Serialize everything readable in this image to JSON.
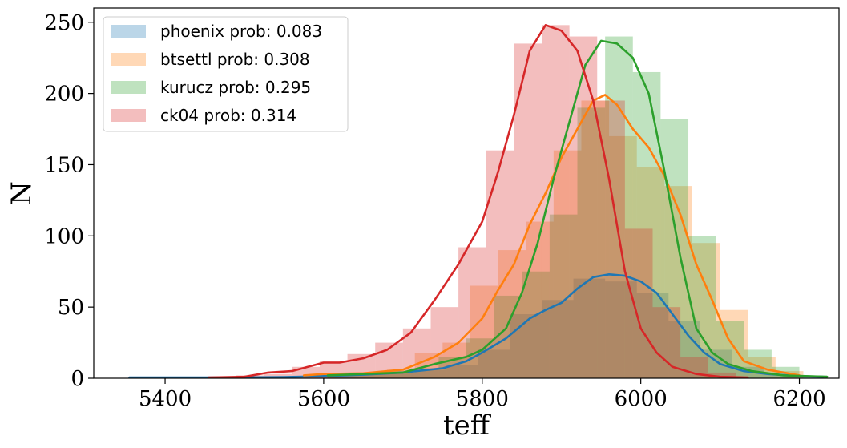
{
  "chart_data": {
    "type": "histogram",
    "xlabel": "teff",
    "ylabel": "N",
    "xlim": [
      5310,
      6250
    ],
    "ylim": [
      0,
      260
    ],
    "xticks": [
      5400,
      5600,
      5800,
      6000,
      6200
    ],
    "yticks": [
      0,
      50,
      100,
      150,
      200,
      250
    ],
    "grid": false,
    "legend_position": "top-left",
    "series": [
      {
        "name": "phoenix prob: 0.083",
        "color": "#1f77b4",
        "bins": [
          [
            5355,
            5395
          ],
          [
            5395,
            5435
          ],
          [
            5435,
            5475
          ],
          [
            5475,
            5515
          ],
          [
            5515,
            5555
          ],
          [
            5555,
            5595
          ],
          [
            5595,
            5635
          ],
          [
            5635,
            5675
          ],
          [
            5675,
            5715
          ],
          [
            5715,
            5755
          ],
          [
            5755,
            5795
          ],
          [
            5795,
            5835
          ],
          [
            5835,
            5875
          ],
          [
            5875,
            5915
          ],
          [
            5915,
            5955
          ],
          [
            5955,
            5995
          ],
          [
            5995,
            6035
          ],
          [
            6035,
            6075
          ],
          [
            6075,
            6115
          ],
          [
            6115,
            6155
          ],
          [
            6155,
            6195
          ],
          [
            6195,
            6235
          ]
        ],
        "counts": [
          1,
          0,
          0,
          0,
          1,
          1,
          2,
          3,
          4,
          6,
          9,
          20,
          45,
          55,
          70,
          68,
          60,
          40,
          20,
          8,
          3,
          1
        ],
        "kde": [
          [
            5355,
            0.5
          ],
          [
            5400,
            0.5
          ],
          [
            5450,
            0.5
          ],
          [
            5500,
            0.6
          ],
          [
            5550,
            0.8
          ],
          [
            5600,
            1.5
          ],
          [
            5650,
            2.5
          ],
          [
            5700,
            4
          ],
          [
            5750,
            7
          ],
          [
            5780,
            12
          ],
          [
            5800,
            18
          ],
          [
            5830,
            28
          ],
          [
            5860,
            42
          ],
          [
            5880,
            48
          ],
          [
            5900,
            53
          ],
          [
            5920,
            63
          ],
          [
            5940,
            71
          ],
          [
            5960,
            73
          ],
          [
            5980,
            72
          ],
          [
            6000,
            68
          ],
          [
            6020,
            60
          ],
          [
            6040,
            45
          ],
          [
            6060,
            30
          ],
          [
            6080,
            18
          ],
          [
            6100,
            10
          ],
          [
            6130,
            5
          ],
          [
            6160,
            3
          ],
          [
            6200,
            1.5
          ],
          [
            6230,
            1
          ]
        ]
      },
      {
        "name": "btsettl prob: 0.308",
        "color": "#ff7f0e",
        "bins": [
          [
            5575,
            5610
          ],
          [
            5610,
            5645
          ],
          [
            5645,
            5680
          ],
          [
            5680,
            5715
          ],
          [
            5715,
            5750
          ],
          [
            5750,
            5785
          ],
          [
            5785,
            5820
          ],
          [
            5820,
            5855
          ],
          [
            5855,
            5890
          ],
          [
            5890,
            5925
          ],
          [
            5925,
            5960
          ],
          [
            5960,
            5995
          ],
          [
            5995,
            6030
          ],
          [
            6030,
            6065
          ],
          [
            6065,
            6100
          ],
          [
            6100,
            6135
          ],
          [
            6135,
            6170
          ],
          [
            6170,
            6205
          ]
        ],
        "counts": [
          2,
          3,
          4,
          6,
          18,
          25,
          65,
          90,
          110,
          160,
          195,
          170,
          148,
          135,
          95,
          48,
          15,
          5
        ],
        "kde": [
          [
            5575,
            2
          ],
          [
            5600,
            3
          ],
          [
            5650,
            3.5
          ],
          [
            5700,
            6
          ],
          [
            5740,
            15
          ],
          [
            5770,
            25
          ],
          [
            5800,
            42
          ],
          [
            5820,
            62
          ],
          [
            5840,
            80
          ],
          [
            5860,
            108
          ],
          [
            5880,
            130
          ],
          [
            5900,
            155
          ],
          [
            5920,
            175
          ],
          [
            5940,
            195
          ],
          [
            5955,
            199
          ],
          [
            5970,
            192
          ],
          [
            5990,
            175
          ],
          [
            6010,
            162
          ],
          [
            6030,
            142
          ],
          [
            6050,
            115
          ],
          [
            6070,
            80
          ],
          [
            6090,
            55
          ],
          [
            6110,
            28
          ],
          [
            6130,
            12
          ],
          [
            6160,
            6
          ],
          [
            6200,
            2
          ]
        ]
      },
      {
        "name": "kurucz prob: 0.295",
        "color": "#2ca02c",
        "bins": [
          [
            5605,
            5640
          ],
          [
            5640,
            5675
          ],
          [
            5675,
            5710
          ],
          [
            5710,
            5745
          ],
          [
            5745,
            5780
          ],
          [
            5780,
            5815
          ],
          [
            5815,
            5850
          ],
          [
            5850,
            5885
          ],
          [
            5885,
            5920
          ],
          [
            5920,
            5955
          ],
          [
            5955,
            5990
          ],
          [
            5990,
            6025
          ],
          [
            6025,
            6060
          ],
          [
            6060,
            6095
          ],
          [
            6095,
            6130
          ],
          [
            6130,
            6165
          ],
          [
            6165,
            6200
          ],
          [
            6200,
            6235
          ]
        ],
        "counts": [
          2,
          4,
          5,
          7,
          15,
          28,
          58,
          75,
          115,
          190,
          240,
          215,
          182,
          100,
          40,
          20,
          8,
          2
        ],
        "kde": [
          [
            5605,
            2
          ],
          [
            5650,
            3
          ],
          [
            5700,
            4
          ],
          [
            5740,
            10
          ],
          [
            5780,
            15
          ],
          [
            5800,
            20
          ],
          [
            5830,
            35
          ],
          [
            5850,
            60
          ],
          [
            5870,
            95
          ],
          [
            5890,
            140
          ],
          [
            5910,
            180
          ],
          [
            5930,
            220
          ],
          [
            5950,
            237
          ],
          [
            5970,
            235
          ],
          [
            5990,
            225
          ],
          [
            6010,
            200
          ],
          [
            6030,
            145
          ],
          [
            6050,
            85
          ],
          [
            6070,
            35
          ],
          [
            6090,
            18
          ],
          [
            6110,
            10
          ],
          [
            6140,
            5
          ],
          [
            6180,
            2
          ],
          [
            6235,
            1
          ]
        ]
      },
      {
        "name": "ck04 prob: 0.314",
        "color": "#d62728",
        "bins": [
          [
            5455,
            5490
          ],
          [
            5490,
            5525
          ],
          [
            5525,
            5560
          ],
          [
            5560,
            5595
          ],
          [
            5595,
            5630
          ],
          [
            5630,
            5665
          ],
          [
            5665,
            5700
          ],
          [
            5700,
            5735
          ],
          [
            5735,
            5770
          ],
          [
            5770,
            5805
          ],
          [
            5805,
            5840
          ],
          [
            5840,
            5875
          ],
          [
            5875,
            5910
          ],
          [
            5910,
            5945
          ],
          [
            5945,
            5980
          ],
          [
            5980,
            6015
          ],
          [
            6015,
            6050
          ],
          [
            6050,
            6085
          ],
          [
            6085,
            6120
          ]
        ],
        "counts": [
          1,
          2,
          3,
          8,
          12,
          17,
          25,
          35,
          50,
          92,
          160,
          235,
          248,
          240,
          195,
          105,
          50,
          15,
          4
        ],
        "kde": [
          [
            5455,
            0.5
          ],
          [
            5500,
            1
          ],
          [
            5530,
            4
          ],
          [
            5560,
            5
          ],
          [
            5580,
            8
          ],
          [
            5600,
            11
          ],
          [
            5620,
            11
          ],
          [
            5650,
            14
          ],
          [
            5680,
            20
          ],
          [
            5710,
            32
          ],
          [
            5740,
            55
          ],
          [
            5770,
            80
          ],
          [
            5800,
            110
          ],
          [
            5820,
            145
          ],
          [
            5840,
            185
          ],
          [
            5860,
            230
          ],
          [
            5880,
            248
          ],
          [
            5900,
            244
          ],
          [
            5920,
            230
          ],
          [
            5940,
            195
          ],
          [
            5960,
            140
          ],
          [
            5980,
            75
          ],
          [
            6000,
            35
          ],
          [
            6020,
            18
          ],
          [
            6040,
            8
          ],
          [
            6070,
            3
          ],
          [
            6100,
            1
          ],
          [
            6135,
            0.5
          ]
        ]
      }
    ]
  }
}
